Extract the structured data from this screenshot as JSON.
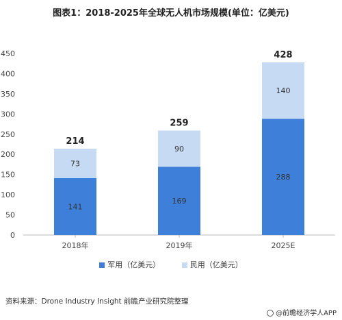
{
  "title": "图表1：2018-2025年全球无人机市场规模(单位：亿美元)",
  "source": "资料来源：Drone Industry Insight 前瞻产业研究院整理",
  "credit": "@前瞻经济学人APP",
  "colors": {
    "military": "#3d7fd9",
    "civil": "#c6dbf3",
    "axis": "#bbbbbb",
    "text": "#444444"
  },
  "chart_data": {
    "type": "bar",
    "stacked": true,
    "categories": [
      "2018年",
      "2019年",
      "2025E"
    ],
    "series": [
      {
        "name": "军用（亿美元）",
        "values": [
          141,
          169,
          288
        ]
      },
      {
        "name": "民用（亿美元）",
        "values": [
          73,
          90,
          140
        ]
      }
    ],
    "totals": [
      214,
      259,
      428
    ],
    "ylim": [
      0,
      450
    ],
    "yticks": [
      0,
      50,
      100,
      150,
      200,
      250,
      300,
      350,
      400,
      450
    ],
    "legend_position": "bottom",
    "grid": false
  }
}
